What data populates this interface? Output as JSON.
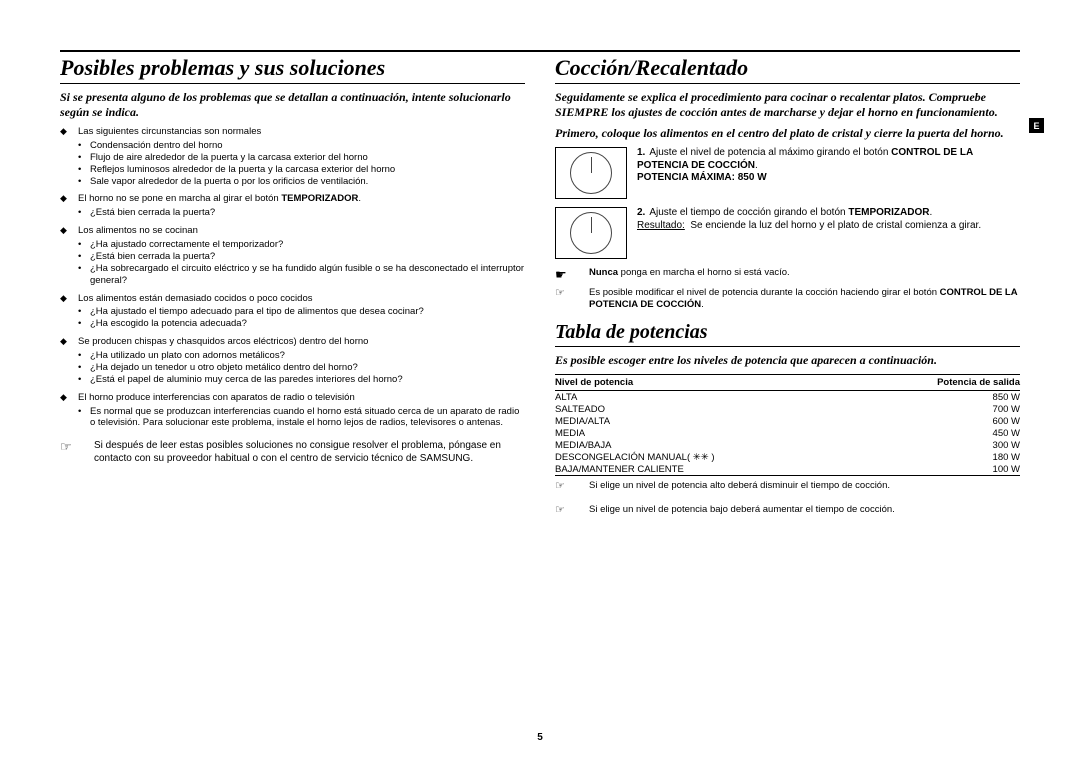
{
  "page_number": "5",
  "side_tab": "E",
  "colors": {
    "text": "#000000",
    "rule": "#000000",
    "background": "#ffffff"
  },
  "left": {
    "title": "Posibles problemas y sus soluciones",
    "lead": "Si se presenta alguno de los problemas que se detallan a continuación, intente solucionarlo según se indica.",
    "groups": [
      {
        "head": "Las siguientes circunstancias son normales",
        "items": [
          "Condensación dentro del horno",
          "Flujo de aire alrededor de la puerta y la carcasa exterior del horno",
          "Reflejos luminosos alrededor de la puerta y la carcasa exterior del horno",
          "Sale vapor alrededor de la puerta o por los orificios de ventilación."
        ]
      },
      {
        "head_html": "El horno no se pone en marcha al girar el botón <b>TEMPORIZADOR</b>.",
        "items": [
          "¿Está bien cerrada la puerta?"
        ]
      },
      {
        "head": "Los alimentos no se cocinan",
        "items": [
          "¿Ha ajustado correctamente el temporizador?",
          "¿Está bien cerrada la puerta?",
          "¿Ha sobrecargado el circuito eléctrico y se ha fundido algún fusible o se ha desconectado el interruptor general?"
        ]
      },
      {
        "head": "Los alimentos están demasiado cocidos o poco cocidos",
        "items": [
          "¿Ha ajustado el tiempo adecuado para el tipo de alimentos que desea cocinar?",
          "¿Ha escogido la potencia adecuada?"
        ]
      },
      {
        "head": "Se producen chispas y chasquidos arcos eléctricos) dentro del horno",
        "items": [
          "¿Ha utilizado un plato con adornos metálicos?",
          "¿Ha dejado un tenedor u otro objeto metálico dentro del horno?",
          "¿Está el papel de aluminio muy cerca de las paredes interiores del horno?"
        ]
      },
      {
        "head": "El horno produce interferencias con aparatos de radio o televisión",
        "items": [
          "Es normal que se produzcan interferencias cuando el horno está situado cerca de un aparato de radio o televisión. Para solucionar este problema, instale el horno lejos de radios, televisores o antenas."
        ]
      }
    ],
    "note": "Si después de leer estas posibles soluciones no consigue resolver el problema, póngase en contacto con su proveedor habitual o con el centro de servicio técnico de SAMSUNG."
  },
  "right": {
    "title1": "Cocción/Recalentado",
    "lead1": "Seguidamente se explica el procedimiento para cocinar o recalentar platos. Compruebe SIEMPRE los ajustes de cocción antes de marcharse y dejar el horno en funcionamiento.",
    "lead1b": "Primero, coloque los alimentos en el centro del plato de cristal y cierre la puerta del horno.",
    "step1_html": "Ajuste el nivel de potencia al máximo girando el botón <b>CONTROL DE LA POTENCIA DE COCCIÓN</b>.<br><b>POTENCIA MÁXIMA:  850 W</b>",
    "step2_html": "Ajuste el tiempo de cocción girando el botón <b>TEMPORIZADOR</b>.<br><u>Resultado:</u>&nbsp;&nbsp;Se enciende la luz del horno y el plato de cristal comienza a girar.",
    "warn_html": "<b>Nunca</b> ponga en marcha el horno si está vacío.",
    "change_html": "Es posible modificar el nivel de potencia durante la cocción haciendo girar el botón <b>CONTROL DE LA POTENCIA DE COCCIÓN</b>.",
    "title2": "Tabla de potencias",
    "lead2": "Es posible escoger entre los niveles de potencia que aparecen a continuación.",
    "table": {
      "head": [
        "Nivel de potencia",
        "Potencia de salida"
      ],
      "rows": [
        [
          "ALTA",
          "850 W"
        ],
        [
          "SALTEADO",
          "700 W"
        ],
        [
          "MEDIA/ALTA",
          "600 W"
        ],
        [
          "MEDIA",
          "450 W"
        ],
        [
          "MEDIA/BAJA",
          "300 W"
        ],
        [
          "DESCONGELACIÓN MANUAL( ✳✳ )",
          "180 W"
        ],
        [
          "BAJA/MANTENER CALIENTE",
          "100 W"
        ]
      ]
    },
    "note_a": "Si elige un nivel de potencia alto deberá disminuir el tiempo de cocción.",
    "note_b": "Si elige un nivel de potencia bajo deberá aumentar el tiempo de cocción."
  }
}
